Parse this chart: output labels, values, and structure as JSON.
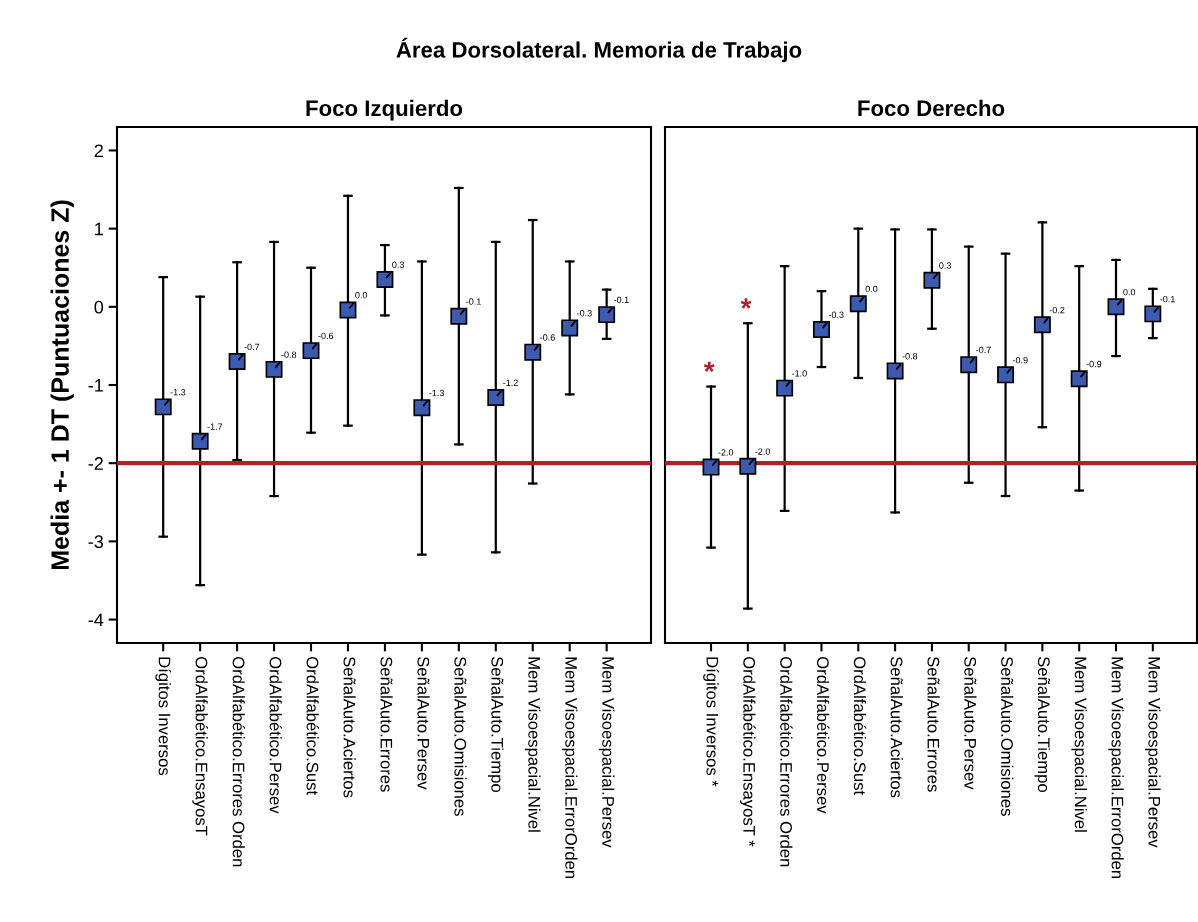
{
  "chart_data": [
    {
      "type": "scatter",
      "title": "Área Dorsolateral. Memoria de Trabajo",
      "subtitle": "Foco Izquierdo",
      "ylabel": "Media +- 1 DT (Puntuaciones Z)",
      "categories": [
        "Dígitos Inversos",
        "OrdAlfabético.EnsayosT",
        "OrdAlfabético.Errores Orden",
        "OrdAlfabético.Persev",
        "OrdAlfabético.Sust",
        "SeñalAuto.Aciertos",
        "SeñalAuto.Errores",
        "SeñalAuto.Persev",
        "SeñalAuto.Omisiones",
        "SeñalAuto.Tiempo",
        "Mem Visoespacial.Nivel",
        "Mem Visoespacial.ErrorOrden",
        "Mem Visoespacial.Persev"
      ],
      "series": [
        {
          "color": "#3c5bb0",
          "values": [
            -1.28,
            -1.72,
            -0.7,
            -0.8,
            -0.56,
            -0.04,
            0.35,
            -1.29,
            -0.12,
            -1.16,
            -0.58,
            -0.27,
            -0.1
          ],
          "errors": [
            [
              -2.94,
              0.38
            ],
            [
              -3.56,
              0.13
            ],
            [
              -1.96,
              0.57
            ],
            [
              -2.42,
              0.83
            ],
            [
              -1.61,
              0.5
            ],
            [
              -1.52,
              1.42
            ],
            [
              -0.11,
              0.79
            ],
            [
              -3.17,
              0.58
            ],
            [
              -1.76,
              1.52
            ],
            [
              -3.14,
              0.83
            ],
            [
              -2.26,
              1.11
            ],
            [
              -1.12,
              0.58
            ],
            [
              -0.41,
              0.22
            ]
          ],
          "value_labels": [
            "-1.3",
            "-1.7",
            "-0.7",
            "-0.8",
            "-0.6",
            "0.0",
            "0.3",
            "-1.3",
            "-0.1",
            "-1.2",
            "-0.6",
            "-0.3",
            "-0.1"
          ]
        }
      ],
      "marker": "square",
      "ylim": [
        -4.3,
        2.3
      ],
      "yticks": [
        -4,
        -3,
        -2,
        -1,
        0,
        1,
        2
      ],
      "grid": false,
      "ref_lines": [
        {
          "axis": "y",
          "value": -2,
          "color": "#b0202a"
        }
      ]
    },
    {
      "type": "scatter",
      "subtitle": "Foco Derecho",
      "tick_labels": "x",
      "categories": [
        "Dígitos Inversos *",
        "OrdAlfabético.EnsayosT *",
        "OrdAlfabético.Errores Orden",
        "OrdAlfabético.Persev",
        "OrdAlfabético.Sust",
        "SeñalAuto.Aciertos",
        "SeñalAuto.Errores",
        "SeñalAuto.Persev",
        "SeñalAuto.Omisiones",
        "SeñalAuto.Tiempo",
        "Mem Visoespacial.Nivel",
        "Mem Visoespacial.ErrorOrden",
        "Mem Visoespacial.Persev"
      ],
      "series": [
        {
          "color": "#3c5bb0",
          "values": [
            -2.05,
            -2.04,
            -1.04,
            -0.29,
            0.04,
            -0.82,
            0.34,
            -0.74,
            -0.87,
            -0.23,
            -0.92,
            0.0,
            -0.09
          ],
          "errors": [
            [
              -3.08,
              -1.02
            ],
            [
              -3.86,
              -0.21
            ],
            [
              -2.61,
              0.52
            ],
            [
              -0.77,
              0.2
            ],
            [
              -0.91,
              1.0
            ],
            [
              -2.63,
              0.99
            ],
            [
              -0.28,
              0.99
            ],
            [
              -2.25,
              0.77
            ],
            [
              -2.42,
              0.68
            ],
            [
              -1.54,
              1.08
            ],
            [
              -2.35,
              0.52
            ],
            [
              -0.63,
              0.6
            ],
            [
              -0.4,
              0.23
            ]
          ],
          "value_labels": [
            "-2.0",
            "-2.0",
            "-1.0",
            "-0.3",
            "0.0",
            "-0.8",
            "0.3",
            "-0.7",
            "-0.9",
            "-0.2",
            "-0.9",
            "0.0",
            "-0.1"
          ]
        }
      ],
      "marker": "square",
      "ylim": [
        -4.3,
        2.3
      ],
      "grid": false,
      "ref_lines": [
        {
          "axis": "y",
          "value": -2,
          "color": "#b0202a"
        }
      ],
      "annotations": [
        {
          "text": "*",
          "x": "Dígitos Inversos *",
          "y": -1.02
        },
        {
          "text": "*",
          "x": "OrdAlfabético.EnsayosT *",
          "y": -0.21
        }
      ]
    }
  ]
}
